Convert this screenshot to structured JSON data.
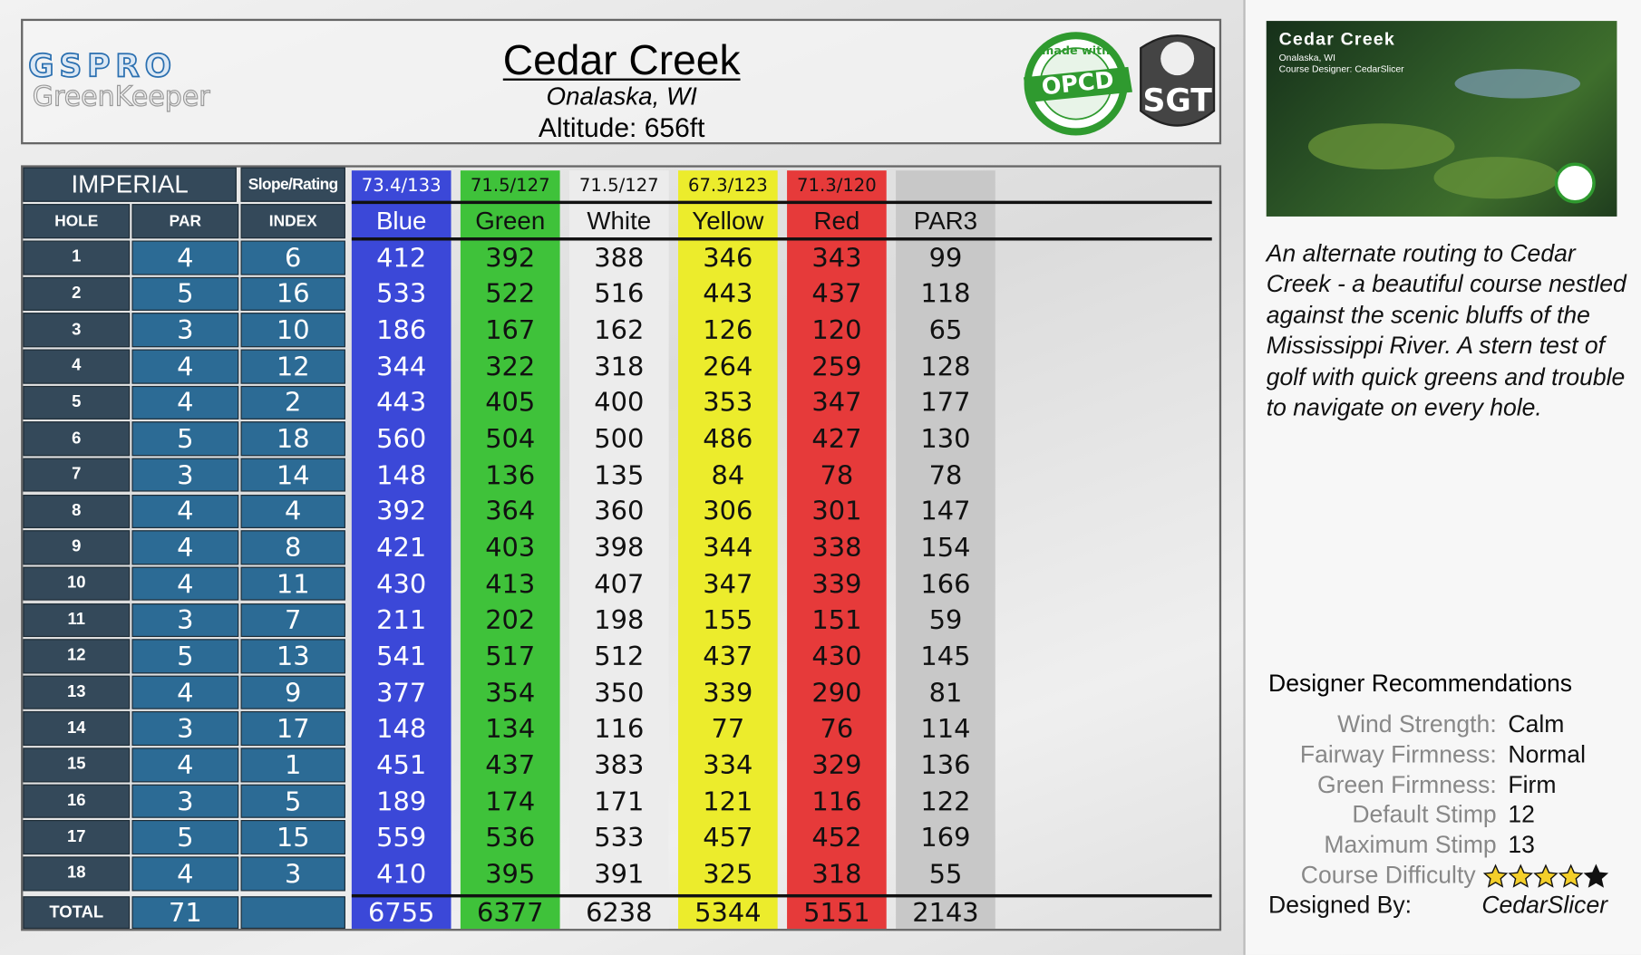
{
  "header": {
    "logo": "GSPRO",
    "logo_sub": "GreenKeeper",
    "title": "Cedar Creek",
    "location": "Onalaska, WI",
    "altitude": "Altitude: 656ft",
    "badges": {
      "opcd_top": "made with",
      "opcd": "OPCD",
      "sgt": "SGT"
    }
  },
  "scorecard": {
    "units": "IMPERIAL",
    "slope_rating_label": "Slope/Rating",
    "columns": [
      "HOLE",
      "PAR",
      "INDEX"
    ],
    "tees": [
      {
        "name": "Blue",
        "rating": "73.4/133",
        "color": "#3b48d8",
        "text_color": "#ffffff"
      },
      {
        "name": "Green",
        "rating": "71.5/127",
        "color": "#3fc23a",
        "text_color": "#111111"
      },
      {
        "name": "White",
        "rating": "71.5/127",
        "color": "#ececec",
        "text_color": "#111111"
      },
      {
        "name": "Yellow",
        "rating": "67.3/123",
        "color": "#ecec2c",
        "text_color": "#111111"
      },
      {
        "name": "Red",
        "rating": "71.3/120",
        "color": "#e63a3a",
        "text_color": "#111111"
      },
      {
        "name": "PAR3",
        "color": "#c8c8c8",
        "text_color": "#111111"
      }
    ],
    "holes": [
      {
        "hole": 1,
        "par": 4,
        "index": 6,
        "yards": [
          412,
          392,
          388,
          346,
          343,
          99
        ]
      },
      {
        "hole": 2,
        "par": 5,
        "index": 16,
        "yards": [
          533,
          522,
          516,
          443,
          437,
          118
        ]
      },
      {
        "hole": 3,
        "par": 3,
        "index": 10,
        "yards": [
          186,
          167,
          162,
          126,
          120,
          65
        ]
      },
      {
        "hole": 4,
        "par": 4,
        "index": 12,
        "yards": [
          344,
          322,
          318,
          264,
          259,
          128
        ]
      },
      {
        "hole": 5,
        "par": 4,
        "index": 2,
        "yards": [
          443,
          405,
          400,
          353,
          347,
          177
        ]
      },
      {
        "hole": 6,
        "par": 5,
        "index": 18,
        "yards": [
          560,
          504,
          500,
          486,
          427,
          130
        ]
      },
      {
        "hole": 7,
        "par": 3,
        "index": 14,
        "yards": [
          148,
          136,
          135,
          84,
          78,
          78
        ]
      },
      {
        "hole": 8,
        "par": 4,
        "index": 4,
        "yards": [
          392,
          364,
          360,
          306,
          301,
          147
        ]
      },
      {
        "hole": 9,
        "par": 4,
        "index": 8,
        "yards": [
          421,
          403,
          398,
          344,
          338,
          154
        ]
      },
      {
        "hole": 10,
        "par": 4,
        "index": 11,
        "yards": [
          430,
          413,
          407,
          347,
          339,
          166
        ]
      },
      {
        "hole": 11,
        "par": 3,
        "index": 7,
        "yards": [
          211,
          202,
          198,
          155,
          151,
          59
        ]
      },
      {
        "hole": 12,
        "par": 5,
        "index": 13,
        "yards": [
          541,
          517,
          512,
          437,
          430,
          145
        ]
      },
      {
        "hole": 13,
        "par": 4,
        "index": 9,
        "yards": [
          377,
          354,
          350,
          339,
          290,
          81
        ]
      },
      {
        "hole": 14,
        "par": 3,
        "index": 17,
        "yards": [
          148,
          134,
          116,
          77,
          76,
          114
        ]
      },
      {
        "hole": 15,
        "par": 4,
        "index": 1,
        "yards": [
          451,
          437,
          383,
          334,
          329,
          136
        ]
      },
      {
        "hole": 16,
        "par": 3,
        "index": 5,
        "yards": [
          189,
          174,
          171,
          121,
          116,
          122
        ]
      },
      {
        "hole": 17,
        "par": 5,
        "index": 15,
        "yards": [
          559,
          536,
          533,
          457,
          452,
          169
        ]
      },
      {
        "hole": 18,
        "par": 4,
        "index": 3,
        "yards": [
          410,
          395,
          391,
          325,
          318,
          55
        ]
      }
    ],
    "total": {
      "label": "TOTAL",
      "par": 71,
      "yards": [
        6755,
        6377,
        6238,
        5344,
        5151,
        2143
      ]
    }
  },
  "sidebar": {
    "thumbnail": {
      "title": "Cedar Creek",
      "location": "Onalaska, WI",
      "designer": "Course Designer: CedarSlicer"
    },
    "description": "An alternate routing to Cedar Creek - a beautiful course nestled against the scenic bluffs of the Mississippi  River. A stern test of golf with quick greens and trouble to navigate on every hole.",
    "recommendations": {
      "title": "Designer Recommendations",
      "items": [
        {
          "label": "Wind Strength:",
          "value": "Calm"
        },
        {
          "label": "Fairway Firmness:",
          "value": "Normal"
        },
        {
          "label": "Green Firmness:",
          "value": "Firm"
        },
        {
          "label": "Default Stimp",
          "value": 12
        },
        {
          "label": "Maximum Stimp",
          "value": 13
        }
      ],
      "difficulty": {
        "label": "Course Difficulty",
        "rating": 4,
        "max": 5
      },
      "designed_by": {
        "label": "Designed By:",
        "value": "CedarSlicer"
      }
    }
  }
}
